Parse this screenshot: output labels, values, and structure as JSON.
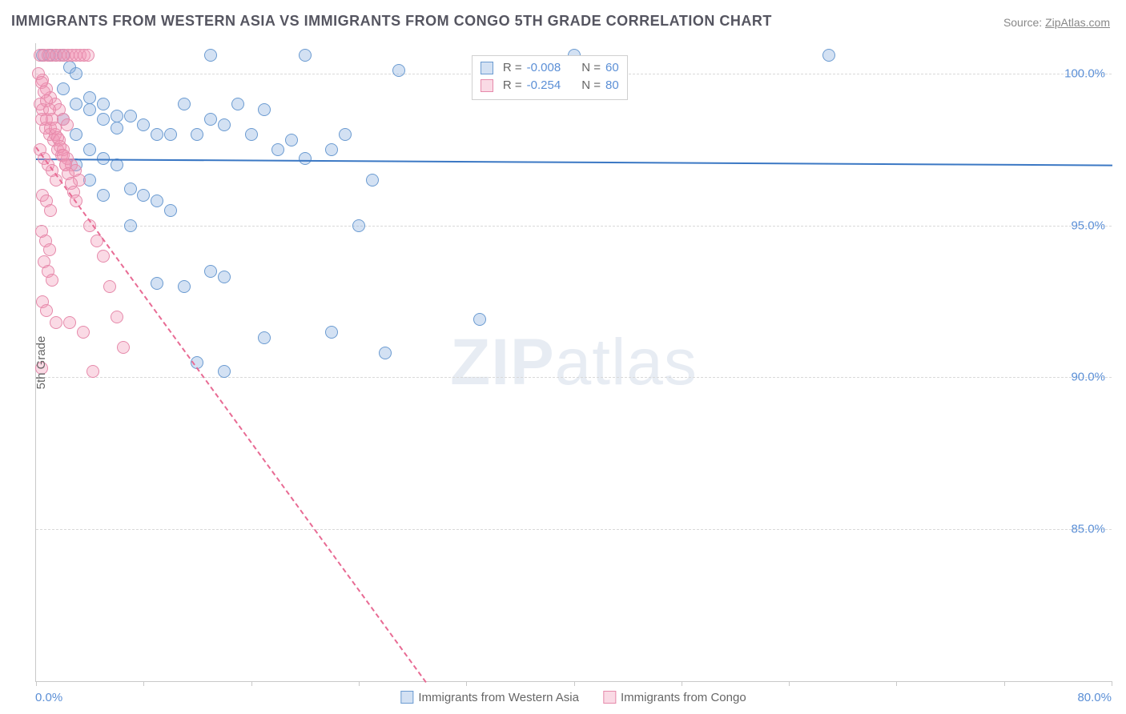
{
  "title": "IMMIGRANTS FROM WESTERN ASIA VS IMMIGRANTS FROM CONGO 5TH GRADE CORRELATION CHART",
  "source_label": "Source:",
  "source_name": "ZipAtlas.com",
  "watermark_a": "ZIP",
  "watermark_b": "atlas",
  "chart": {
    "type": "scatter",
    "background_color": "#ffffff",
    "grid_color": "#d9d9d9",
    "axis_color": "#c9c9c9",
    "y_axis_title": "5th Grade",
    "x_min_label": "0.0%",
    "x_max_label": "80.0%",
    "xlim": [
      0,
      80
    ],
    "ylim": [
      80,
      101
    ],
    "y_ticks": [
      85.0,
      90.0,
      95.0,
      100.0
    ],
    "y_tick_labels": [
      "85.0%",
      "90.0%",
      "95.0%",
      "100.0%"
    ],
    "x_ticks": [
      0,
      8,
      16,
      24,
      32,
      40,
      48,
      56,
      64,
      72,
      80
    ],
    "point_radius": 8,
    "point_border_width": 1.2,
    "series": [
      {
        "name": "Immigrants from Western Asia",
        "fill": "rgba(130,170,220,0.35)",
        "stroke": "#6b9bd1",
        "trend_color": "#3b78c4",
        "trend_width": 2.5,
        "trend_dash": "solid",
        "R": "-0.008",
        "N": "60",
        "trend": {
          "x1": 0,
          "y1": 97.2,
          "x2": 80,
          "y2": 97.0
        },
        "points": [
          [
            0.5,
            100.6
          ],
          [
            1,
            100.6
          ],
          [
            1.5,
            100.6
          ],
          [
            2,
            100.6
          ],
          [
            2.5,
            100.2
          ],
          [
            3,
            100.0
          ],
          [
            13,
            100.6
          ],
          [
            20,
            100.6
          ],
          [
            27,
            100.1
          ],
          [
            59,
            100.6
          ],
          [
            4,
            99.2
          ],
          [
            5,
            99.0
          ],
          [
            6,
            98.6
          ],
          [
            7,
            98.6
          ],
          [
            8,
            98.3
          ],
          [
            9,
            98.0
          ],
          [
            10,
            98.0
          ],
          [
            11,
            99.0
          ],
          [
            12,
            98.0
          ],
          [
            13,
            98.5
          ],
          [
            14,
            98.3
          ],
          [
            15,
            99.0
          ],
          [
            16,
            98.0
          ],
          [
            17,
            98.8
          ],
          [
            18,
            97.5
          ],
          [
            19,
            97.8
          ],
          [
            20,
            97.2
          ],
          [
            22,
            97.5
          ],
          [
            23,
            98.0
          ],
          [
            25,
            96.5
          ],
          [
            3,
            97.0
          ],
          [
            4,
            96.5
          ],
          [
            5,
            96.0
          ],
          [
            6,
            97.0
          ],
          [
            7,
            96.2
          ],
          [
            8,
            96.0
          ],
          [
            9,
            95.8
          ],
          [
            10,
            95.5
          ],
          [
            7,
            95.0
          ],
          [
            9,
            93.1
          ],
          [
            11,
            93.0
          ],
          [
            13,
            93.5
          ],
          [
            14,
            93.3
          ],
          [
            17,
            91.3
          ],
          [
            22,
            91.5
          ],
          [
            12,
            90.5
          ],
          [
            14,
            90.2
          ],
          [
            24,
            95.0
          ],
          [
            26,
            90.8
          ],
          [
            33,
            91.9
          ],
          [
            2,
            98.5
          ],
          [
            3,
            98.0
          ],
          [
            4,
            97.5
          ],
          [
            5,
            97.2
          ],
          [
            2,
            99.5
          ],
          [
            3,
            99.0
          ],
          [
            4,
            98.8
          ],
          [
            5,
            98.5
          ],
          [
            6,
            98.2
          ],
          [
            40,
            100.6
          ]
        ]
      },
      {
        "name": "Immigrants from Congo",
        "fill": "rgba(240,150,180,0.35)",
        "stroke": "#e68aab",
        "trend_color": "#e86b94",
        "trend_width": 2,
        "trend_dash": "dashed",
        "R": "-0.254",
        "N": "80",
        "trend": {
          "x1": 0,
          "y1": 97.6,
          "x2": 29,
          "y2": 80
        },
        "points": [
          [
            0.3,
            100.6
          ],
          [
            0.6,
            100.6
          ],
          [
            0.9,
            100.6
          ],
          [
            1.2,
            100.6
          ],
          [
            1.5,
            100.6
          ],
          [
            1.8,
            100.6
          ],
          [
            2.1,
            100.6
          ],
          [
            2.4,
            100.6
          ],
          [
            2.7,
            100.6
          ],
          [
            3.0,
            100.6
          ],
          [
            3.3,
            100.6
          ],
          [
            3.6,
            100.6
          ],
          [
            3.9,
            100.6
          ],
          [
            0.5,
            99.8
          ],
          [
            0.8,
            99.5
          ],
          [
            1.1,
            99.2
          ],
          [
            1.4,
            99.0
          ],
          [
            1.7,
            98.8
          ],
          [
            2.0,
            98.5
          ],
          [
            2.3,
            98.3
          ],
          [
            0.4,
            98.5
          ],
          [
            0.7,
            98.2
          ],
          [
            1.0,
            98.0
          ],
          [
            1.3,
            97.8
          ],
          [
            1.6,
            97.5
          ],
          [
            1.9,
            97.3
          ],
          [
            2.2,
            97.0
          ],
          [
            0.3,
            97.5
          ],
          [
            0.6,
            97.2
          ],
          [
            0.9,
            97.0
          ],
          [
            1.2,
            96.8
          ],
          [
            1.5,
            96.5
          ],
          [
            0.5,
            96.0
          ],
          [
            0.8,
            95.8
          ],
          [
            1.1,
            95.5
          ],
          [
            0.4,
            94.8
          ],
          [
            0.7,
            94.5
          ],
          [
            1.0,
            94.2
          ],
          [
            0.6,
            93.8
          ],
          [
            0.9,
            93.5
          ],
          [
            1.2,
            93.2
          ],
          [
            0.5,
            92.5
          ],
          [
            0.8,
            92.2
          ],
          [
            1.5,
            91.8
          ],
          [
            2.5,
            91.8
          ],
          [
            3.5,
            91.5
          ],
          [
            0.4,
            90.3
          ],
          [
            4.2,
            90.2
          ],
          [
            0.3,
            99.0
          ],
          [
            0.5,
            98.8
          ],
          [
            0.8,
            98.5
          ],
          [
            1.1,
            98.2
          ],
          [
            1.4,
            98.0
          ],
          [
            1.7,
            97.8
          ],
          [
            2.0,
            97.5
          ],
          [
            2.3,
            97.2
          ],
          [
            2.6,
            97.0
          ],
          [
            2.9,
            96.8
          ],
          [
            3.2,
            96.5
          ],
          [
            0.2,
            100.0
          ],
          [
            0.4,
            99.7
          ],
          [
            0.6,
            99.4
          ],
          [
            0.8,
            99.1
          ],
          [
            1.0,
            98.8
          ],
          [
            1.2,
            98.5
          ],
          [
            1.4,
            98.2
          ],
          [
            1.6,
            97.9
          ],
          [
            1.8,
            97.6
          ],
          [
            2.0,
            97.3
          ],
          [
            2.2,
            97.0
          ],
          [
            2.4,
            96.7
          ],
          [
            2.6,
            96.4
          ],
          [
            2.8,
            96.1
          ],
          [
            3.0,
            95.8
          ],
          [
            4.0,
            95.0
          ],
          [
            4.5,
            94.5
          ],
          [
            5.0,
            94.0
          ],
          [
            5.5,
            93.0
          ],
          [
            6.0,
            92.0
          ],
          [
            6.5,
            91.0
          ]
        ]
      }
    ],
    "stat_legend": {
      "left_pct": 40.5,
      "top_y": 100.6
    },
    "bottom_legend_labels": [
      "Immigrants from Western Asia",
      "Immigrants from Congo"
    ]
  }
}
